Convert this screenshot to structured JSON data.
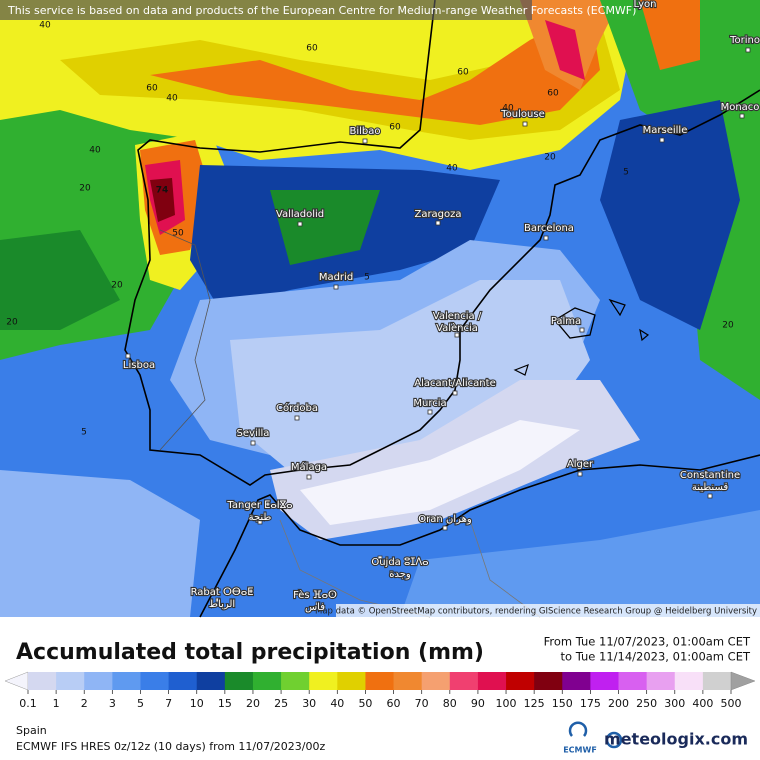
{
  "banner": "This service is based on data and products of the European Centre for Medium-range Weather Forecasts (ECMWF)",
  "attribution": "Map data © OpenStreetMap contributors, rendering GIScience Research Group @ Heidelberg University",
  "cities": [
    {
      "lines": [
        "Lyon"
      ]
    },
    {
      "lines": [
        "Torino"
      ]
    },
    {
      "lines": [
        "Monaco"
      ]
    },
    {
      "lines": [
        "Marseille"
      ]
    },
    {
      "lines": [
        "Toulouse"
      ]
    },
    {
      "lines": [
        "Bilbao"
      ]
    },
    {
      "lines": [
        "Valladolid"
      ]
    },
    {
      "lines": [
        "Zaragoza"
      ]
    },
    {
      "lines": [
        "Barcelona"
      ]
    },
    {
      "lines": [
        "Madrid"
      ]
    },
    {
      "lines": [
        "Valencia /",
        "València"
      ]
    },
    {
      "lines": [
        "Palma"
      ]
    },
    {
      "lines": [
        "Lisboa"
      ]
    },
    {
      "lines": [
        "Alacant/Alicante"
      ]
    },
    {
      "lines": [
        "Murcia"
      ]
    },
    {
      "lines": [
        "Córdoba"
      ]
    },
    {
      "lines": [
        "Sevilla"
      ]
    },
    {
      "lines": [
        "Málaga"
      ]
    },
    {
      "lines": [
        "Alger"
      ]
    },
    {
      "lines": [
        "Constantine",
        "قسنطينة"
      ]
    },
    {
      "lines": [
        "Tanger ⵟⴰⵏⴵⴰ",
        "طنجة"
      ]
    },
    {
      "lines": [
        "Oran وهران"
      ]
    },
    {
      "lines": [
        "Oujda ⵓⵊⴷⴰ",
        "وجدة"
      ]
    },
    {
      "lines": [
        "Rabat ⵔⴱⴰⵟ",
        "الرباط"
      ]
    },
    {
      "lines": [
        "Fès ⴼⴰⵙ",
        "فاس"
      ]
    }
  ],
  "contour_labels": [
    40,
    60,
    40,
    60,
    40,
    60,
    40,
    60,
    60,
    20,
    74,
    50,
    20,
    20,
    5,
    5,
    5,
    20,
    40,
    20
  ],
  "legend": {
    "title": "Accumulated total precipitation (mm)",
    "from": "From Tue 11/07/2023, 01:00am CET",
    "to": "to Tue 11/14/2023, 01:00am CET",
    "ticks": [
      0.1,
      1,
      2,
      3,
      5,
      7,
      10,
      15,
      20,
      25,
      30,
      40,
      50,
      60,
      70,
      80,
      90,
      100,
      125,
      150,
      175,
      200,
      250,
      300,
      400,
      500
    ],
    "colors": [
      "#f4f4fc",
      "#d4d8f0",
      "#b8cdf5",
      "#8fb5f5",
      "#5f9af0",
      "#3a7ee8",
      "#1f5fd0",
      "#0f3fa0",
      "#1a8a2a",
      "#30b030",
      "#70d030",
      "#f0f020",
      "#e0d000",
      "#f07010",
      "#f08830",
      "#f5a070",
      "#f04070",
      "#e01050",
      "#c00000",
      "#800010",
      "#800090",
      "#c020f0",
      "#d860f0",
      "#e8a0f0",
      "#f8e0f8",
      "#d0d0d0",
      "#a0a0a0"
    ]
  },
  "footer": {
    "region": "Spain",
    "model": "ECMWF IFS HRES 0z/12z (10 days) from  11/07/2023/00z",
    "ecmwf": "ECMWF",
    "brand": "meteologix.com"
  }
}
